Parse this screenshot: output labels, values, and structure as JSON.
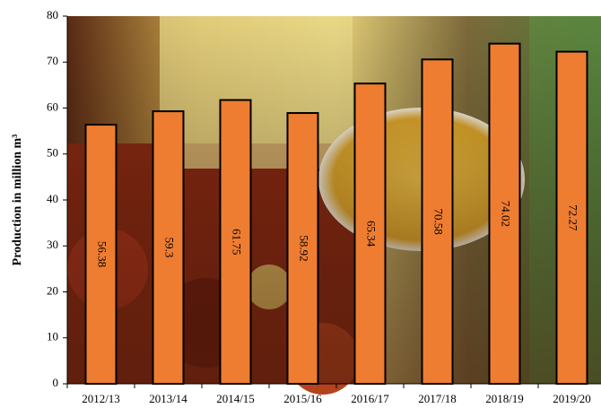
{
  "chart_data": {
    "type": "bar",
    "y_label": "Production in million m³",
    "categories": [
      "2012/13",
      "2013/14",
      "2014/15",
      "2015/16",
      "2016/17",
      "2017/18",
      "2018/19",
      "2019/20"
    ],
    "values": [
      56.38,
      59.3,
      61.75,
      58.92,
      65.34,
      70.58,
      74.02,
      72.27
    ],
    "color": "#ee7d31",
    "ylim": [
      0,
      80
    ],
    "yticks": [
      0,
      10,
      20,
      30,
      40,
      50,
      60,
      70,
      80
    ]
  }
}
